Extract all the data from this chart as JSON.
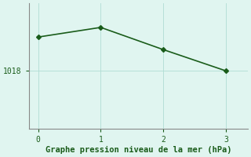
{
  "x": [
    0,
    1,
    2,
    3
  ],
  "y": [
    1021.5,
    1022.5,
    1020.2,
    1018.0
  ],
  "line_color": "#1a5c1a",
  "marker": "D",
  "marker_size": 3,
  "line_width": 1.2,
  "bg_color": "#e0f5f0",
  "grid_color": "#b0ddd4",
  "axis_color": "#888888",
  "xlabel": "Graphe pression niveau de la mer (hPa)",
  "xlabel_color": "#1a5c1a",
  "xlabel_fontsize": 7.5,
  "tick_label_color": "#1a5c1a",
  "tick_fontsize": 7,
  "xlim": [
    -0.15,
    3.35
  ],
  "ylim": [
    1012.0,
    1025.0
  ],
  "ytick_values": [
    1018
  ],
  "xtick_values": [
    0,
    1,
    2,
    3
  ]
}
